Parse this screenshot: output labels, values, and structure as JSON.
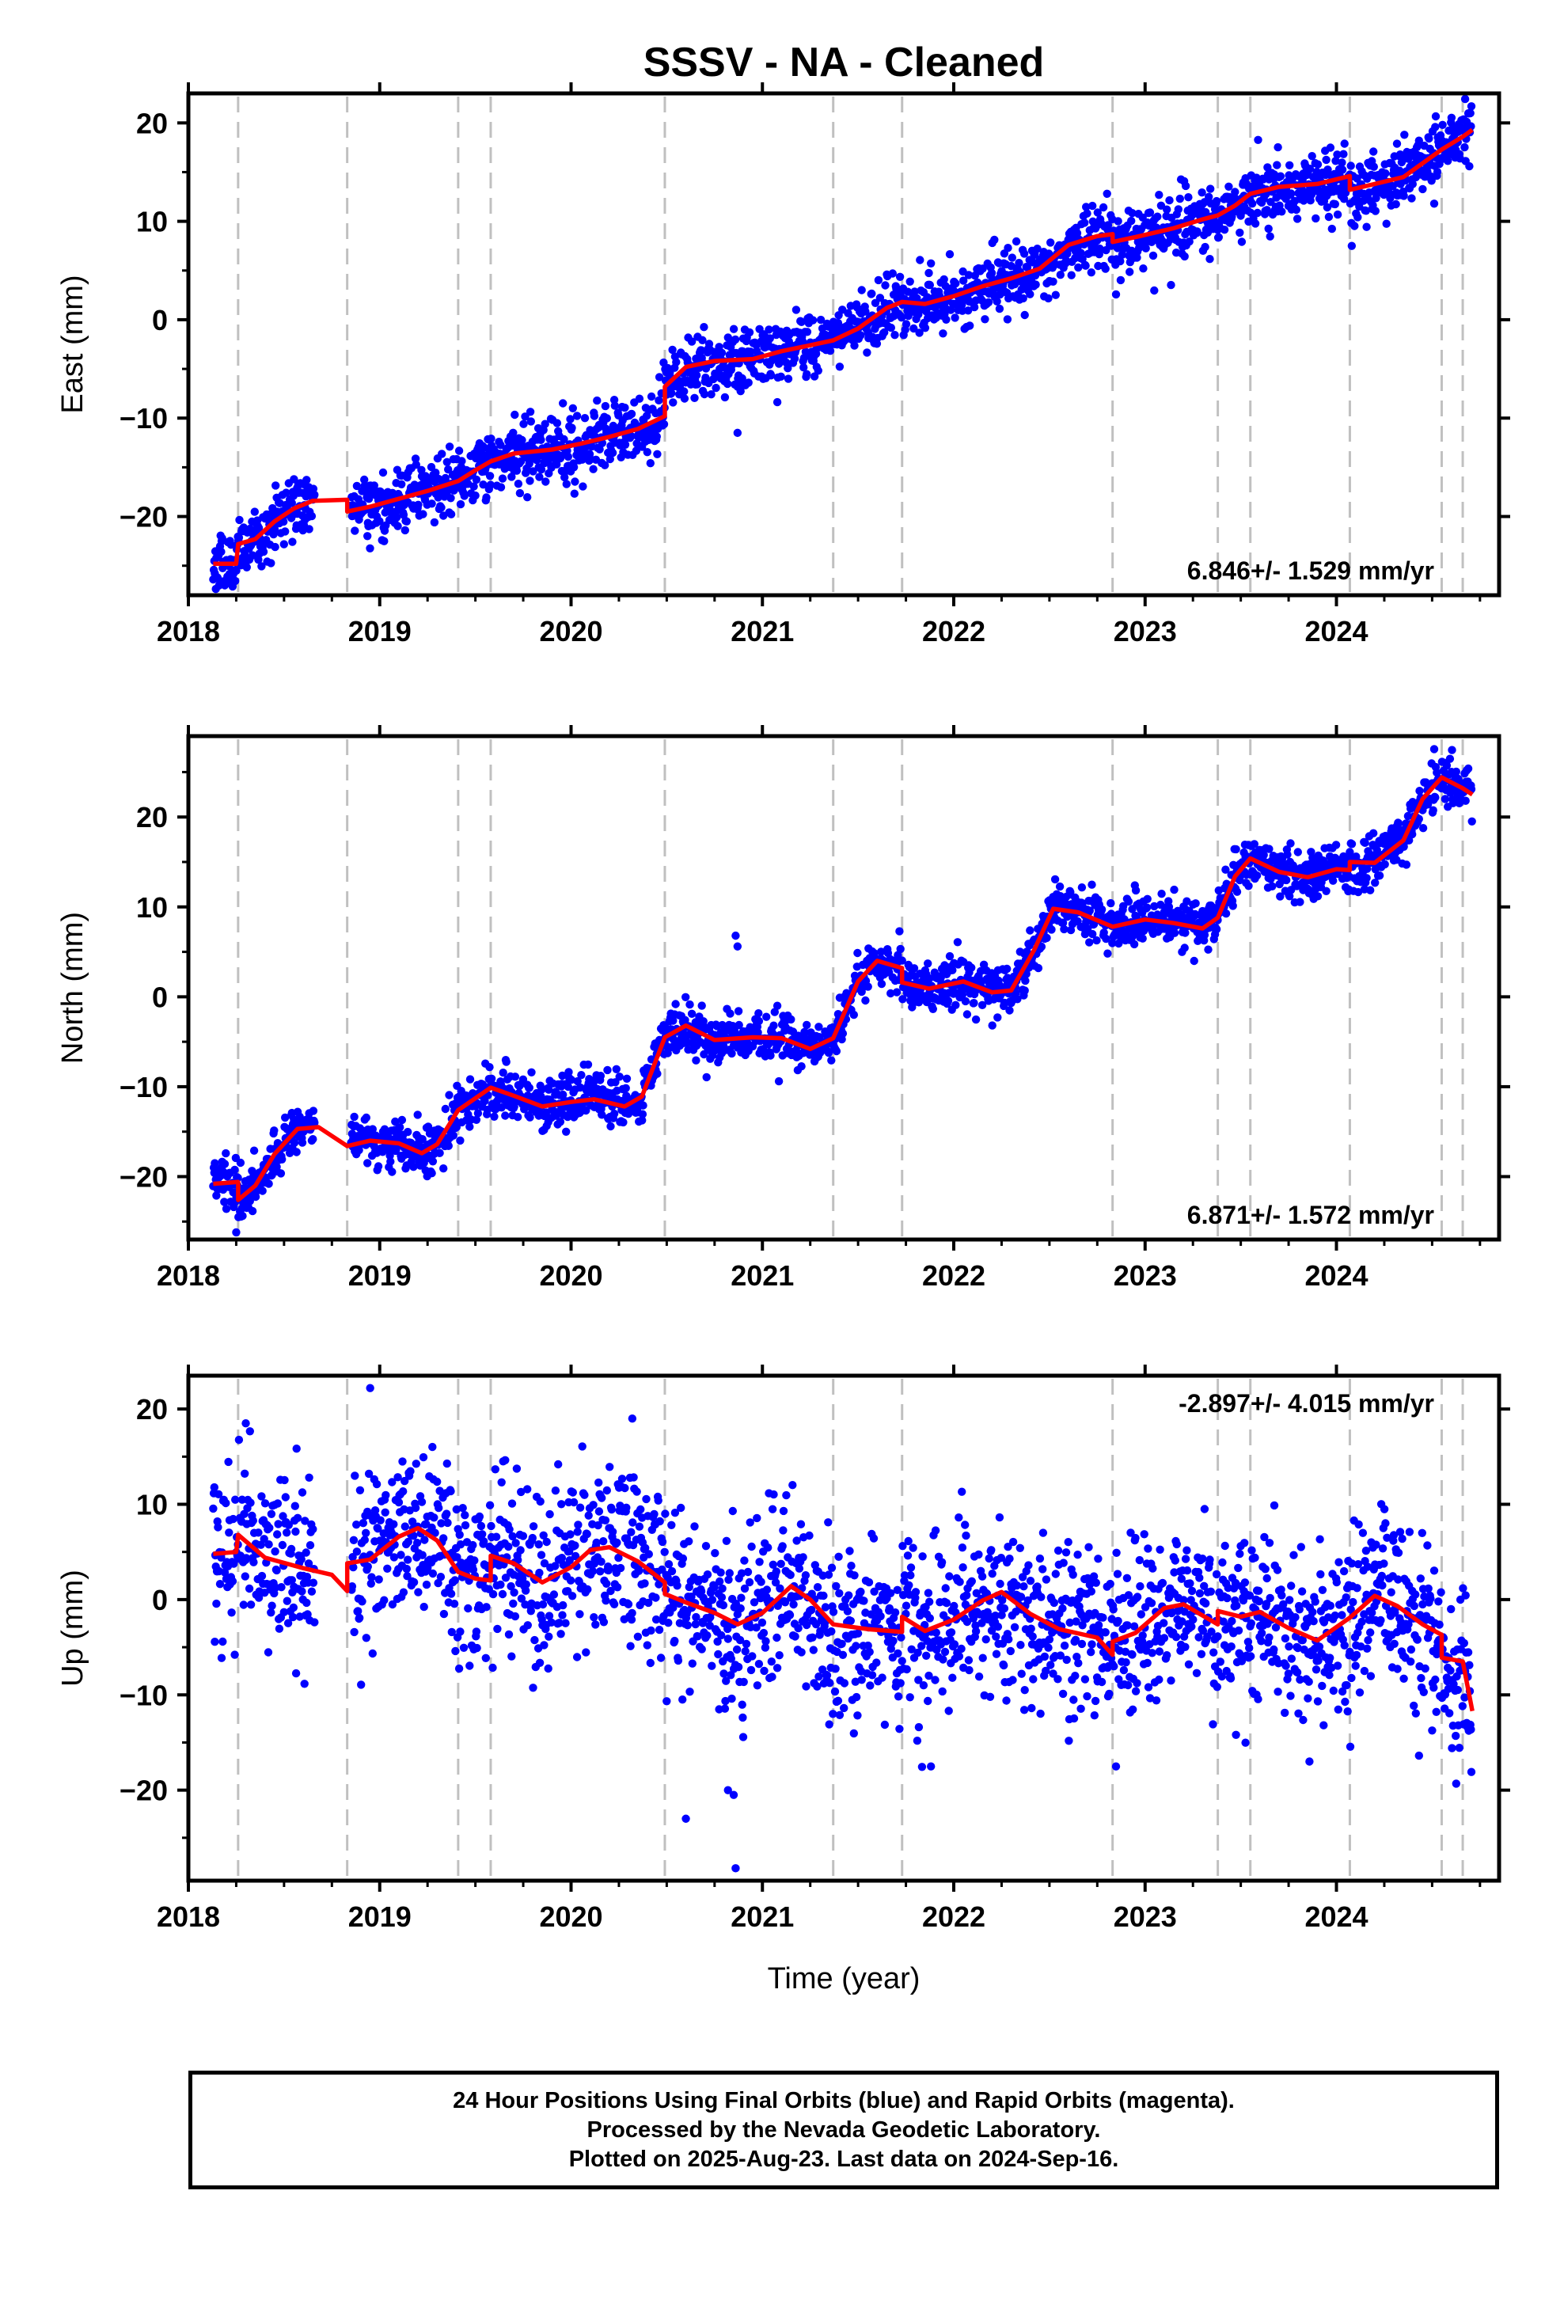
{
  "title": "SSSV  - NA - Cleaned",
  "xlabel": "Time (year)",
  "caption": [
    "24 Hour Positions Using Final Orbits (blue) and Rapid Orbits (magenta).",
    "Processed by the Nevada Geodetic Laboratory.",
    "Plotted on 2025-Aug-23. Last data on 2024-Sep-16."
  ],
  "colors": {
    "points": "#0000ff",
    "model": "#ff0000",
    "event_lines": "#c0c0c0",
    "axes": "#000000"
  },
  "chart_data": [
    {
      "type": "scatter",
      "ylabel": "East (mm)",
      "rate_label": "6.846+/- 1.529 mm/yr",
      "rate_position": "bottom-right",
      "xlim": [
        2018.0,
        2024.85
      ],
      "ylim": [
        -28,
        23
      ],
      "x_ticks": [
        2018,
        2019,
        2020,
        2021,
        2022,
        2023,
        2024
      ],
      "x_tick_labels": [
        "2018",
        "2019",
        "2020",
        "2021",
        "2022",
        "2023",
        "2024"
      ],
      "y_ticks": [
        -20,
        -10,
        0,
        10,
        20
      ],
      "y_tick_labels": [
        "−20",
        "−10",
        "0",
        "10",
        "20"
      ],
      "event_lines_x": [
        2018.26,
        2018.83,
        2019.41,
        2019.58,
        2020.49,
        2021.37,
        2021.73,
        2022.83,
        2023.38,
        2023.55,
        2024.07,
        2024.55,
        2024.66
      ],
      "data_span": [
        2018.13,
        2024.71
      ],
      "scatter_sigma": 1.6,
      "outliers": [
        {
          "x": 2020.87,
          "y": -11.5
        },
        {
          "x": 2024.08,
          "y": 7.5
        }
      ],
      "model_line": [
        [
          2018.13,
          -24.8
        ],
        [
          2018.25,
          -24.8
        ],
        [
          2018.26,
          -22.8
        ],
        [
          2018.35,
          -22.3
        ],
        [
          2018.45,
          -20.5
        ],
        [
          2018.55,
          -19.2
        ],
        [
          2018.65,
          -18.4
        ],
        [
          2018.83,
          -18.3
        ],
        [
          2018.83,
          -19.5
        ],
        [
          2018.95,
          -19.0
        ],
        [
          2019.1,
          -18.2
        ],
        [
          2019.25,
          -17.4
        ],
        [
          2019.41,
          -16.4
        ],
        [
          2019.5,
          -15.3
        ],
        [
          2019.58,
          -14.4
        ],
        [
          2019.7,
          -13.6
        ],
        [
          2019.9,
          -13.2
        ],
        [
          2020.05,
          -12.6
        ],
        [
          2020.2,
          -11.9
        ],
        [
          2020.35,
          -11.1
        ],
        [
          2020.49,
          -9.8
        ],
        [
          2020.49,
          -6.8
        ],
        [
          2020.6,
          -4.8
        ],
        [
          2020.75,
          -4.2
        ],
        [
          2020.95,
          -4.0
        ],
        [
          2021.1,
          -3.2
        ],
        [
          2021.25,
          -2.6
        ],
        [
          2021.37,
          -2.1
        ],
        [
          2021.5,
          -0.9
        ],
        [
          2021.65,
          1.2
        ],
        [
          2021.73,
          1.8
        ],
        [
          2021.85,
          1.6
        ],
        [
          2022.0,
          2.4
        ],
        [
          2022.15,
          3.4
        ],
        [
          2022.3,
          4.2
        ],
        [
          2022.45,
          5.2
        ],
        [
          2022.6,
          7.6
        ],
        [
          2022.75,
          8.5
        ],
        [
          2022.83,
          8.7
        ],
        [
          2022.83,
          7.9
        ],
        [
          2022.95,
          8.4
        ],
        [
          2023.15,
          9.3
        ],
        [
          2023.3,
          10.2
        ],
        [
          2023.38,
          10.6
        ],
        [
          2023.47,
          11.6
        ],
        [
          2023.55,
          12.8
        ],
        [
          2023.7,
          13.5
        ],
        [
          2023.9,
          13.8
        ],
        [
          2024.07,
          14.6
        ],
        [
          2024.07,
          13.2
        ],
        [
          2024.2,
          13.8
        ],
        [
          2024.35,
          14.5
        ],
        [
          2024.55,
          17.3
        ],
        [
          2024.66,
          18.6
        ],
        [
          2024.71,
          19.3
        ]
      ]
    },
    {
      "type": "scatter",
      "ylabel": "North (mm)",
      "rate_label": "6.871+/- 1.572 mm/yr",
      "rate_position": "bottom-right",
      "xlim": [
        2018.0,
        2024.85
      ],
      "ylim": [
        -27,
        29
      ],
      "x_ticks": [
        2018,
        2019,
        2020,
        2021,
        2022,
        2023,
        2024
      ],
      "x_tick_labels": [
        "2018",
        "2019",
        "2020",
        "2021",
        "2022",
        "2023",
        "2024"
      ],
      "y_ticks": [
        -20,
        -10,
        0,
        10,
        20
      ],
      "y_tick_labels": [
        "−20",
        "−10",
        "0",
        "10",
        "20"
      ],
      "event_lines_x": [
        2018.26,
        2018.83,
        2019.41,
        2019.58,
        2020.49,
        2021.37,
        2021.73,
        2022.83,
        2023.38,
        2023.55,
        2024.07,
        2024.55,
        2024.66
      ],
      "data_span": [
        2018.13,
        2024.71
      ],
      "scatter_sigma": 1.4,
      "outliers": [
        {
          "x": 2020.86,
          "y": 6.8
        },
        {
          "x": 2020.87,
          "y": 5.6
        },
        {
          "x": 2018.25,
          "y": -26.2
        }
      ],
      "model_line": [
        [
          2018.13,
          -20.8
        ],
        [
          2018.26,
          -20.6
        ],
        [
          2018.26,
          -22.6
        ],
        [
          2018.35,
          -21.0
        ],
        [
          2018.45,
          -17.5
        ],
        [
          2018.57,
          -14.7
        ],
        [
          2018.68,
          -14.5
        ],
        [
          2018.83,
          -16.6
        ],
        [
          2018.95,
          -16.0
        ],
        [
          2019.1,
          -16.3
        ],
        [
          2019.22,
          -17.4
        ],
        [
          2019.3,
          -16.4
        ],
        [
          2019.41,
          -12.6
        ],
        [
          2019.58,
          -10.1
        ],
        [
          2019.7,
          -11.0
        ],
        [
          2019.85,
          -12.2
        ],
        [
          2020.0,
          -11.7
        ],
        [
          2020.12,
          -11.4
        ],
        [
          2020.28,
          -12.2
        ],
        [
          2020.37,
          -11.1
        ],
        [
          2020.49,
          -4.5
        ],
        [
          2020.6,
          -3.2
        ],
        [
          2020.75,
          -4.8
        ],
        [
          2020.95,
          -4.5
        ],
        [
          2021.1,
          -4.6
        ],
        [
          2021.25,
          -5.8
        ],
        [
          2021.37,
          -4.6
        ],
        [
          2021.5,
          1.7
        ],
        [
          2021.6,
          4.0
        ],
        [
          2021.73,
          3.2
        ],
        [
          2021.73,
          1.6
        ],
        [
          2021.87,
          0.9
        ],
        [
          2022.05,
          1.7
        ],
        [
          2022.2,
          0.5
        ],
        [
          2022.3,
          0.7
        ],
        [
          2022.42,
          5.2
        ],
        [
          2022.52,
          9.8
        ],
        [
          2022.65,
          9.4
        ],
        [
          2022.83,
          7.8
        ],
        [
          2023.0,
          8.6
        ],
        [
          2023.15,
          8.2
        ],
        [
          2023.3,
          7.6
        ],
        [
          2023.38,
          8.8
        ],
        [
          2023.47,
          13.4
        ],
        [
          2023.55,
          15.4
        ],
        [
          2023.7,
          13.9
        ],
        [
          2023.85,
          13.3
        ],
        [
          2024.0,
          14.2
        ],
        [
          2024.07,
          14.1
        ],
        [
          2024.07,
          15.0
        ],
        [
          2024.2,
          14.9
        ],
        [
          2024.35,
          17.4
        ],
        [
          2024.45,
          22.0
        ],
        [
          2024.55,
          24.4
        ],
        [
          2024.66,
          23.2
        ],
        [
          2024.71,
          22.5
        ]
      ]
    },
    {
      "type": "scatter",
      "ylabel": "Up (mm)",
      "rate_label": "-2.897+/- 4.015 mm/yr",
      "rate_position": "top-right",
      "xlim": [
        2018.0,
        2024.85
      ],
      "ylim": [
        -29.5,
        23.5
      ],
      "x_ticks": [
        2018,
        2019,
        2020,
        2021,
        2022,
        2023,
        2024
      ],
      "x_tick_labels": [
        "2018",
        "2019",
        "2020",
        "2021",
        "2022",
        "2023",
        "2024"
      ],
      "y_ticks": [
        -20,
        -10,
        0,
        10,
        20
      ],
      "y_tick_labels": [
        "−20",
        "−10",
        "0",
        "10",
        "20"
      ],
      "event_lines_x": [
        2018.26,
        2018.83,
        2019.41,
        2019.58,
        2020.49,
        2021.37,
        2021.73,
        2022.83,
        2023.38,
        2023.55,
        2024.07,
        2024.55,
        2024.66
      ],
      "data_span": [
        2018.13,
        2024.71
      ],
      "scatter_sigma": 4.6,
      "outliers": [
        {
          "x": 2018.95,
          "y": 22.2
        },
        {
          "x": 2020.32,
          "y": 19.0
        },
        {
          "x": 2020.6,
          "y": -23.0
        },
        {
          "x": 2020.82,
          "y": -20.0
        },
        {
          "x": 2020.85,
          "y": -20.5
        },
        {
          "x": 2020.86,
          "y": -28.2
        },
        {
          "x": 2018.3,
          "y": 18.5
        }
      ],
      "model_line": [
        [
          2018.13,
          4.8
        ],
        [
          2018.25,
          5.0
        ],
        [
          2018.26,
          6.8
        ],
        [
          2018.4,
          4.4
        ],
        [
          2018.6,
          3.3
        ],
        [
          2018.75,
          2.6
        ],
        [
          2018.83,
          0.9
        ],
        [
          2018.83,
          3.8
        ],
        [
          2018.95,
          4.2
        ],
        [
          2019.1,
          6.6
        ],
        [
          2019.2,
          7.5
        ],
        [
          2019.3,
          6.2
        ],
        [
          2019.41,
          2.9
        ],
        [
          2019.5,
          2.2
        ],
        [
          2019.58,
          2.0
        ],
        [
          2019.58,
          4.6
        ],
        [
          2019.7,
          3.8
        ],
        [
          2019.85,
          1.8
        ],
        [
          2020.0,
          3.4
        ],
        [
          2020.1,
          5.2
        ],
        [
          2020.2,
          5.5
        ],
        [
          2020.35,
          4.0
        ],
        [
          2020.49,
          1.8
        ],
        [
          2020.49,
          0.6
        ],
        [
          2020.6,
          -0.3
        ],
        [
          2020.75,
          -1.4
        ],
        [
          2020.87,
          -2.6
        ],
        [
          2021.0,
          -1.4
        ],
        [
          2021.15,
          1.4
        ],
        [
          2021.25,
          0.0
        ],
        [
          2021.37,
          -2.6
        ],
        [
          2021.55,
          -3.1
        ],
        [
          2021.73,
          -3.4
        ],
        [
          2021.73,
          -1.8
        ],
        [
          2021.85,
          -3.3
        ],
        [
          2022.0,
          -2.1
        ],
        [
          2022.15,
          -0.1
        ],
        [
          2022.25,
          0.8
        ],
        [
          2022.4,
          -1.5
        ],
        [
          2022.55,
          -3.1
        ],
        [
          2022.75,
          -4.0
        ],
        [
          2022.83,
          -5.8
        ],
        [
          2022.83,
          -4.4
        ],
        [
          2022.95,
          -3.5
        ],
        [
          2023.1,
          -0.9
        ],
        [
          2023.2,
          -0.5
        ],
        [
          2023.38,
          -2.6
        ],
        [
          2023.38,
          -1.2
        ],
        [
          2023.5,
          -1.8
        ],
        [
          2023.6,
          -1.3
        ],
        [
          2023.75,
          -3.0
        ],
        [
          2023.9,
          -4.3
        ],
        [
          2024.07,
          -1.9
        ],
        [
          2024.2,
          0.4
        ],
        [
          2024.32,
          -0.7
        ],
        [
          2024.45,
          -2.6
        ],
        [
          2024.55,
          -3.7
        ],
        [
          2024.55,
          -6.1
        ],
        [
          2024.66,
          -6.5
        ],
        [
          2024.71,
          -11.7
        ]
      ]
    }
  ]
}
